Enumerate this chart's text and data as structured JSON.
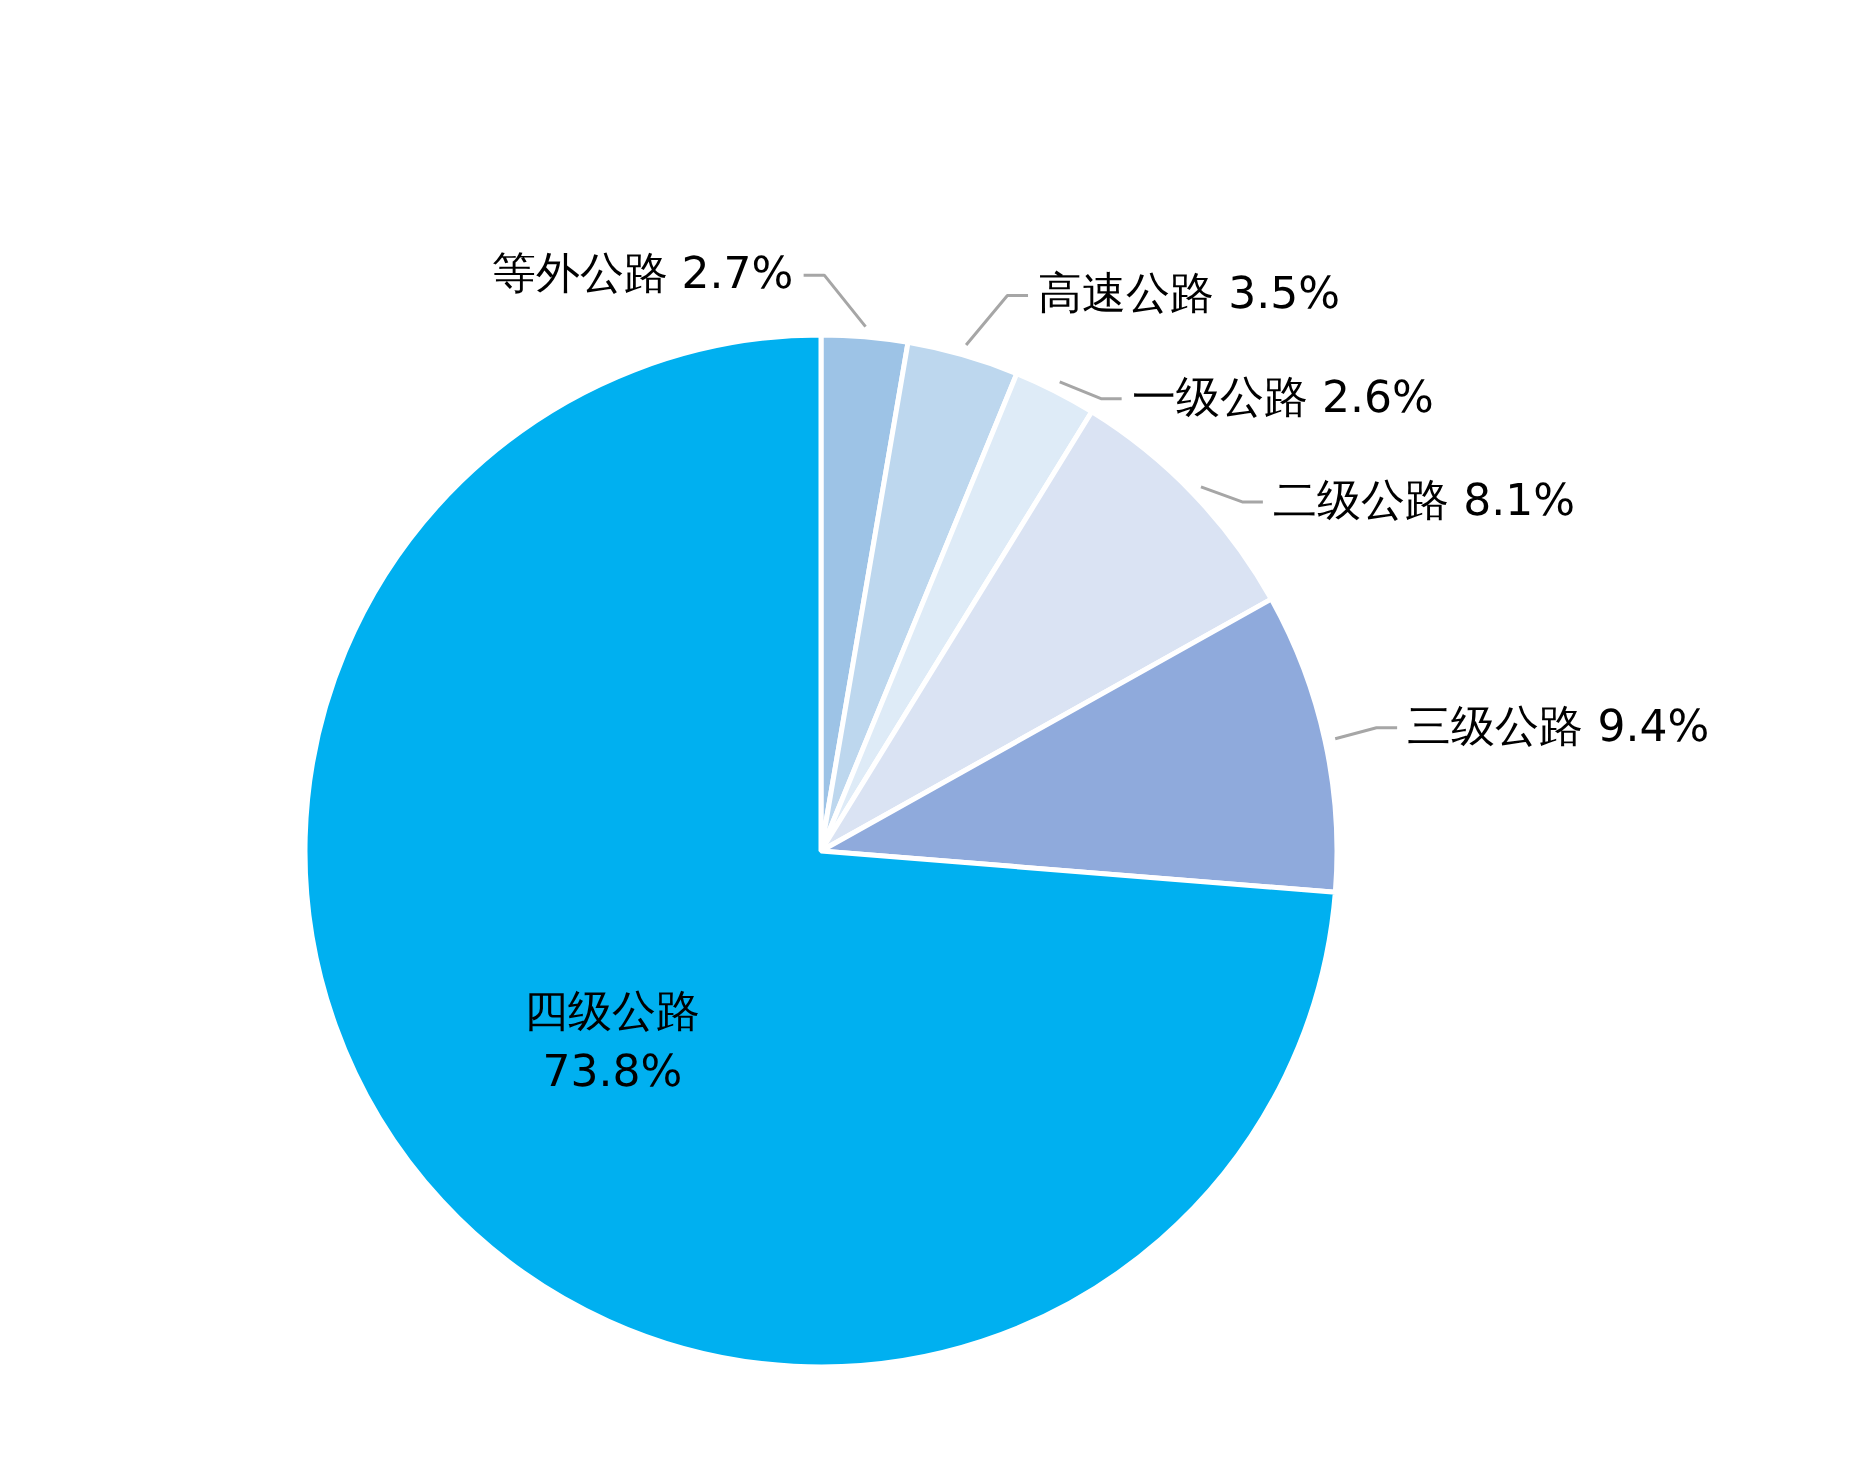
{
  "chart_data": {
    "type": "pie",
    "categories": [
      "等外公路",
      "高速公路",
      "一级公路",
      "二级公路",
      "三级公路",
      "四级公路"
    ],
    "values": [
      2.7,
      3.5,
      2.6,
      8.1,
      9.4,
      73.8
    ],
    "colors": [
      "#9dc3e6",
      "#bdd7ee",
      "#deebf7",
      "#dae3f3",
      "#8faadc",
      "#00b0f0"
    ],
    "value_labels": [
      "2.7%",
      "3.5%",
      "2.6%",
      "8.1%",
      "9.4%",
      "73.8%"
    ]
  }
}
